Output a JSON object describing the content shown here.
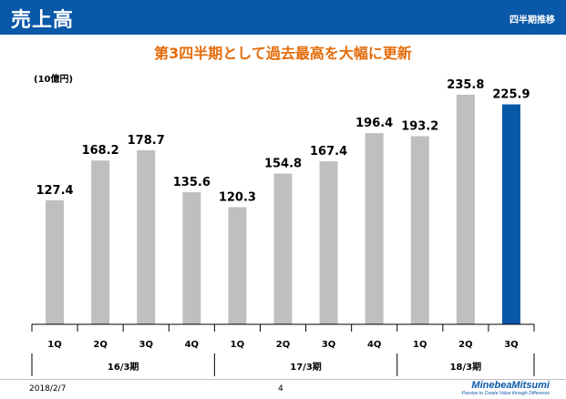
{
  "header": {
    "title": "売上高",
    "subtitle": "四半期推移"
  },
  "chart_subtitle": "第3四半期として過去最高を大幅に更新",
  "footer": {
    "date": "2018/2/7",
    "page": "4",
    "logo": "MinebeaMitsumi",
    "logo_tagline": "Passion to Create Value through Difference"
  },
  "colors": {
    "header": "#0a58a8",
    "bar": "#bfbfbf",
    "highlight_bar": "#0a58a8",
    "subtitle": "#e46c0a"
  },
  "chart_data": {
    "type": "bar",
    "title": "",
    "unit": "(10億円)",
    "categories": [
      "1Q",
      "2Q",
      "3Q",
      "4Q",
      "1Q",
      "2Q",
      "3Q",
      "4Q",
      "1Q",
      "2Q",
      "3Q"
    ],
    "groups": [
      {
        "label": "16/3期",
        "count": 4
      },
      {
        "label": "17/3期",
        "count": 4
      },
      {
        "label": "18/3期",
        "count": 3
      }
    ],
    "values": [
      127.4,
      168.2,
      178.7,
      135.6,
      120.3,
      154.8,
      167.4,
      196.4,
      193.2,
      235.8,
      225.9
    ],
    "value_labels": [
      "127.4",
      "168.2",
      "178.7",
      "135.6",
      "120.3",
      "154.8",
      "167.4",
      "196.4",
      "193.2",
      "235.8",
      "225.9"
    ],
    "highlight_index": 10,
    "ylim": [
      0,
      247
    ],
    "grid": false,
    "legend": "none"
  }
}
